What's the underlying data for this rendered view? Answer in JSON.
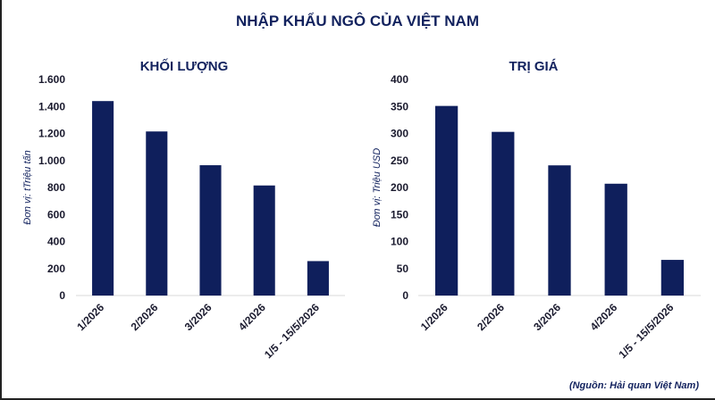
{
  "title": "NHẬP KHẨU NGÔ CỦA VIỆT NAM",
  "source": "(Nguồn: Hải quan Việt Nam)",
  "colors": {
    "bar": "#0f1f5c",
    "title": "#12225e",
    "text": "#1a1a2e",
    "axis": "#d9d9d9"
  },
  "chart_data": [
    {
      "type": "bar",
      "title": "KHỐI LƯỢNG",
      "ylabel": "Đơn vị: tTriệu tấn",
      "xlabel": "",
      "categories": [
        "1/2026",
        "2/2026",
        "3/2026",
        "4/2026",
        "1/5 - 15/5/2026"
      ],
      "values": [
        1440,
        1215,
        965,
        815,
        255
      ],
      "ylim": [
        0,
        1600
      ],
      "yticks": [
        0,
        200,
        400,
        600,
        800,
        1000,
        1200,
        1400,
        1600
      ],
      "ytick_labels": [
        "0",
        "200",
        "400",
        "600",
        "800",
        "1.000",
        "1.200",
        "1.400",
        "1.600"
      ],
      "grid": false,
      "legend": "none"
    },
    {
      "type": "bar",
      "title": "TRỊ GIÁ",
      "ylabel": "Đơn vị: Triệu USD",
      "xlabel": "",
      "categories": [
        "1/2026",
        "2/2026",
        "3/2026",
        "4/2026",
        "1/5 - 15/5/2026"
      ],
      "values": [
        351,
        303,
        241,
        207,
        66
      ],
      "ylim": [
        0,
        400
      ],
      "yticks": [
        0,
        50,
        100,
        150,
        200,
        250,
        300,
        350,
        400
      ],
      "ytick_labels": [
        "0",
        "50",
        "100",
        "150",
        "200",
        "250",
        "300",
        "350",
        "400"
      ],
      "grid": false,
      "legend": "none"
    }
  ]
}
